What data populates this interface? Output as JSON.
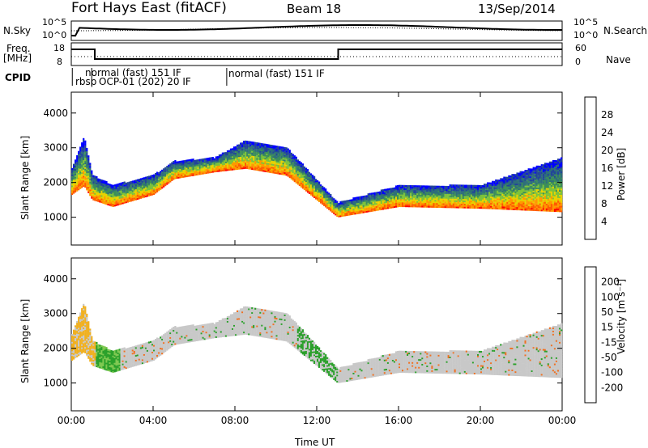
{
  "header": {
    "radar": "Fort Hays East (fitACF)",
    "beam": "Beam 18",
    "date": "13/Sep/2014"
  },
  "top_panels": {
    "nsky_label": "N.Sky",
    "nsearch_label": "N.Search",
    "nsky_ticks": [
      "10^5",
      "10^0"
    ],
    "nsearch_ticks": [
      "10^5",
      "10^0"
    ],
    "freq_label_1": "Freq.",
    "freq_label_2": "[MHz]",
    "freq_ticks": [
      "18",
      "8"
    ],
    "nave_label": "Nave",
    "nave_ticks": [
      "60",
      "0"
    ],
    "cpid_label": "CPID",
    "cpid_entries": [
      {
        "text": "normal (fast) 151 IF",
        "x_hour": 1.1
      },
      {
        "text": "rbsp",
        "x_hour": 0.05
      },
      {
        "text": "OCP-01 (202) 20 IF",
        "x_hour": 0.95
      },
      {
        "text": "normal (fast) 151 IF",
        "x_hour": 7.6
      }
    ]
  },
  "chart_data": [
    {
      "type": "heatmap",
      "title": "Power",
      "xlabel": "Time UT",
      "ylabel": "Slant Range [km]",
      "xlim": [
        0,
        24
      ],
      "ylim": [
        200,
        4600
      ],
      "yticks": [
        "1000",
        "2000",
        "3000",
        "4000"
      ],
      "colorbar": {
        "label": "Power [dB]",
        "ticks": [
          "28",
          "24",
          "20",
          "16",
          "12",
          "8",
          "4"
        ],
        "range": [
          0,
          30
        ]
      },
      "bands": [
        {
          "t": 0.0,
          "lo": 1650,
          "hi": 2400
        },
        {
          "t": 0.6,
          "lo": 1900,
          "hi": 3300
        },
        {
          "t": 1.0,
          "lo": 1500,
          "hi": 2200
        },
        {
          "t": 2.0,
          "lo": 1300,
          "hi": 1900
        },
        {
          "t": 4.0,
          "lo": 1650,
          "hi": 2200
        },
        {
          "t": 5.0,
          "lo": 2100,
          "hi": 2600
        },
        {
          "t": 7.0,
          "lo": 2300,
          "hi": 2700
        },
        {
          "t": 8.5,
          "lo": 2400,
          "hi": 3200
        },
        {
          "t": 10.5,
          "lo": 2200,
          "hi": 3000
        },
        {
          "t": 13.0,
          "lo": 1000,
          "hi": 1400
        },
        {
          "t": 16.0,
          "lo": 1300,
          "hi": 1900
        },
        {
          "t": 20.0,
          "lo": 1250,
          "hi": 1900
        },
        {
          "t": 24.0,
          "lo": 1150,
          "hi": 2700
        }
      ]
    },
    {
      "type": "heatmap",
      "title": "Velocity",
      "xlabel": "Time UT",
      "ylabel": "Slant Range [km]",
      "xlim": [
        0,
        24
      ],
      "ylim": [
        200,
        4600
      ],
      "yticks": [
        "1000",
        "2000",
        "3000",
        "4000"
      ],
      "xticks": [
        "00:00",
        "04:00",
        "08:00",
        "12:00",
        "16:00",
        "20:00",
        "00:00"
      ],
      "colorbar": {
        "label": "Velocity [m s⁻¹]",
        "ticks": [
          "200",
          "100",
          "50",
          "15",
          "-15",
          "-50",
          "-100",
          "-200"
        ]
      }
    }
  ],
  "colors": {
    "power_scale": [
      "#0000ff",
      "#22449a",
      "#2e6e7a",
      "#3c8d5a",
      "#7cc23a",
      "#e8d200",
      "#ff9900",
      "#ff5a00",
      "#ff0000"
    ],
    "velocity_scale": [
      "#2038a8",
      "#3a76d0",
      "#2aa02a",
      "#7ec850",
      "#c8c8c8",
      "#f0b020",
      "#f07020",
      "#ff2000",
      "#ff0000"
    ]
  }
}
